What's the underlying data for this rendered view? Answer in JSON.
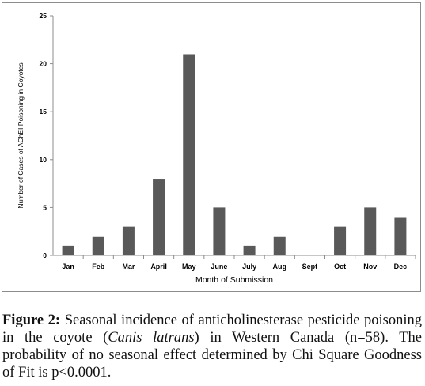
{
  "chart_data": {
    "type": "bar",
    "categories": [
      "Jan",
      "Feb",
      "Mar",
      "April",
      "May",
      "June",
      "July",
      "Aug",
      "Sept",
      "Oct",
      "Nov",
      "Dec"
    ],
    "values": [
      1,
      2,
      3,
      8,
      21,
      5,
      1,
      2,
      0,
      3,
      5,
      4
    ],
    "xlabel": "Month of Submission",
    "ylabel": "Number of Cases of AChEI Poisoning in Coyotes",
    "ylim": [
      0,
      25
    ],
    "yticks": [
      0,
      5,
      10,
      15,
      20,
      25
    ],
    "grid": false,
    "legend": "none",
    "bar_color": "#595959"
  },
  "caption": {
    "lead": "Figure 2:",
    "part1": " Seasonal incidence of anticholinesterase pesticide poisoning in the coyote (",
    "species": "Canis latrans",
    "part2": ") in Western Canada (n=58). The probability of no seasonal effect determined by Chi Square Goodness of Fit is p<0.0001."
  }
}
